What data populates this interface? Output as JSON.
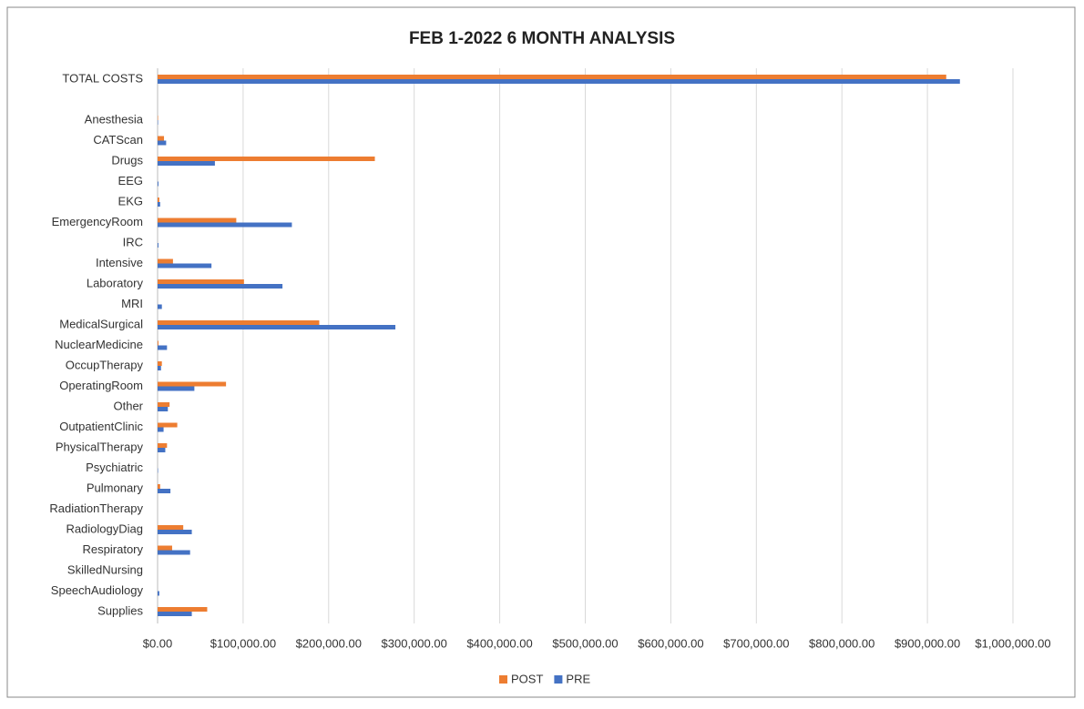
{
  "chart_data": {
    "type": "barh",
    "title": "FEB 1-2022 6 MONTH ANALYSIS",
    "categories": [
      "TOTAL COSTS",
      null,
      "Anesthesia",
      "CATScan",
      "Drugs",
      "EEG",
      "EKG",
      "EmergencyRoom",
      "IRC",
      "Intensive",
      "Laboratory",
      "MRI",
      "MedicalSurgical",
      "NuclearMedicine",
      "OccupTherapy",
      "OperatingRoom",
      "Other",
      "OutpatientClinic",
      "PhysicalTherapy",
      "Psychiatric",
      "Pulmonary",
      "RadiationTherapy",
      "RadiologyDiag",
      "Respiratory",
      "SkilledNursing",
      "SpeechAudiology",
      "Supplies"
    ],
    "series": [
      {
        "name": "POST",
        "color": "#ed7d31",
        "values": [
          922000,
          null,
          500,
          7500,
          254000,
          0,
          2000,
          92000,
          0,
          18000,
          101000,
          0,
          189000,
          1000,
          5000,
          80000,
          14000,
          23000,
          11000,
          0,
          3000,
          0,
          30000,
          17000,
          0,
          0,
          58000
        ]
      },
      {
        "name": "PRE",
        "color": "#4472c4",
        "values": [
          938000,
          null,
          500,
          10000,
          67000,
          1000,
          3000,
          157000,
          1000,
          63000,
          146000,
          5000,
          278000,
          11000,
          4000,
          43000,
          12000,
          7000,
          9000,
          500,
          15000,
          0,
          40000,
          38000,
          0,
          2000,
          40000
        ]
      }
    ],
    "xlim": [
      0,
      1000000
    ],
    "xticks": [
      {
        "value": 0,
        "label": "$0.00"
      },
      {
        "value": 100000,
        "label": "$100,000.00"
      },
      {
        "value": 200000,
        "label": "$200,000.00"
      },
      {
        "value": 300000,
        "label": "$300,000.00"
      },
      {
        "value": 400000,
        "label": "$400,000.00"
      },
      {
        "value": 500000,
        "label": "$500,000.00"
      },
      {
        "value": 600000,
        "label": "$600,000.00"
      },
      {
        "value": 700000,
        "label": "$700,000.00"
      },
      {
        "value": 800000,
        "label": "$800,000.00"
      },
      {
        "value": 900000,
        "label": "$900,000.00"
      },
      {
        "value": 1000000,
        "label": "$1,000,000.00"
      }
    ],
    "grid": true,
    "legend": "bottom"
  }
}
